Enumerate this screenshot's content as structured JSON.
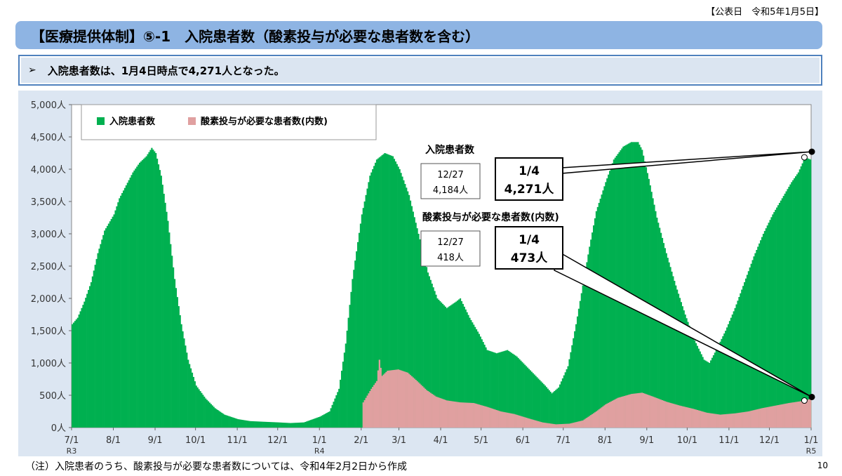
{
  "header": {
    "published": "【公表日　令和5年1月5日】",
    "title": "【医療提供体制】⑤-1　入院患者数（酸素投与が必要な患者数を含む）",
    "summary_bullet": "➢",
    "summary": "入院患者数は、1月4日時点で4,271人となった。"
  },
  "footer": {
    "note": "（注）入院患者のうち、酸素投与が必要な患者数については、令和4年2月2日から作成",
    "page_number": "10"
  },
  "colors": {
    "inpatients": "#00b050",
    "oxygen": "#e0a0a0",
    "plot_bg": "#ffffff",
    "frame_bg": "#dce6f2",
    "title_bar": "#8eb4e3"
  },
  "chart_data": {
    "type": "area",
    "x_unit": "date",
    "ylim": [
      0,
      5000
    ],
    "yticks": [
      "0人",
      "500人",
      "1,000人",
      "1,500人",
      "2,000人",
      "2,500人",
      "3,000人",
      "3,500人",
      "4,000人",
      "4,500人",
      "5,000人"
    ],
    "xticks": [
      "7/1",
      "8/1",
      "9/1",
      "10/1",
      "11/1",
      "12/1",
      "1/1",
      "2/1",
      "3/1",
      "4/1",
      "5/1",
      "6/1",
      "7/1",
      "8/1",
      "9/1",
      "10/1",
      "11/1",
      "12/1",
      "1/1"
    ],
    "xticks_sub": {
      "0": "R3",
      "6": "R4",
      "18": "R5"
    },
    "grid": false,
    "legend": {
      "placement": "top-left",
      "entries": [
        "入院患者数",
        "酸素投与が必要な患者数(内数)"
      ]
    },
    "series": [
      {
        "name": "入院患者数",
        "points": [
          [
            "2021-07-01",
            1600
          ],
          [
            "2021-07-05",
            1700
          ],
          [
            "2021-07-10",
            1950
          ],
          [
            "2021-07-15",
            2250
          ],
          [
            "2021-07-20",
            2700
          ],
          [
            "2021-07-25",
            3050
          ],
          [
            "2021-08-01",
            3300
          ],
          [
            "2021-08-05",
            3550
          ],
          [
            "2021-08-10",
            3750
          ],
          [
            "2021-08-15",
            3950
          ],
          [
            "2021-08-20",
            4100
          ],
          [
            "2021-08-25",
            4200
          ],
          [
            "2021-08-29",
            4330
          ],
          [
            "2021-09-01",
            4250
          ],
          [
            "2021-09-05",
            3900
          ],
          [
            "2021-09-10",
            3200
          ],
          [
            "2021-09-15",
            2300
          ],
          [
            "2021-09-20",
            1600
          ],
          [
            "2021-09-25",
            1050
          ],
          [
            "2021-10-01",
            650
          ],
          [
            "2021-10-08",
            450
          ],
          [
            "2021-10-15",
            300
          ],
          [
            "2021-10-22",
            200
          ],
          [
            "2021-11-01",
            130
          ],
          [
            "2021-11-10",
            100
          ],
          [
            "2021-11-20",
            90
          ],
          [
            "2021-12-01",
            80
          ],
          [
            "2021-12-10",
            70
          ],
          [
            "2021-12-20",
            80
          ],
          [
            "2022-01-01",
            170
          ],
          [
            "2022-01-08",
            250
          ],
          [
            "2022-01-15",
            600
          ],
          [
            "2022-01-20",
            1300
          ],
          [
            "2022-01-25",
            2300
          ],
          [
            "2022-02-01",
            3300
          ],
          [
            "2022-02-07",
            3900
          ],
          [
            "2022-02-12",
            4150
          ],
          [
            "2022-02-18",
            4250
          ],
          [
            "2022-02-24",
            4200
          ],
          [
            "2022-03-01",
            4000
          ],
          [
            "2022-03-08",
            3600
          ],
          [
            "2022-03-15",
            3000
          ],
          [
            "2022-03-22",
            2400
          ],
          [
            "2022-03-29",
            2000
          ],
          [
            "2022-04-05",
            1850
          ],
          [
            "2022-04-12",
            1950
          ],
          [
            "2022-04-15",
            2000
          ],
          [
            "2022-04-22",
            1700
          ],
          [
            "2022-04-29",
            1450
          ],
          [
            "2022-05-05",
            1200
          ],
          [
            "2022-05-12",
            1150
          ],
          [
            "2022-05-20",
            1200
          ],
          [
            "2022-05-27",
            1100
          ],
          [
            "2022-06-03",
            950
          ],
          [
            "2022-06-10",
            800
          ],
          [
            "2022-06-17",
            650
          ],
          [
            "2022-06-22",
            530
          ],
          [
            "2022-06-27",
            620
          ],
          [
            "2022-07-04",
            950
          ],
          [
            "2022-07-10",
            1600
          ],
          [
            "2022-07-15",
            2200
          ],
          [
            "2022-07-20",
            2800
          ],
          [
            "2022-07-25",
            3350
          ],
          [
            "2022-08-01",
            3800
          ],
          [
            "2022-08-07",
            4150
          ],
          [
            "2022-08-14",
            4350
          ],
          [
            "2022-08-20",
            4420
          ],
          [
            "2022-08-25",
            4420
          ],
          [
            "2022-08-28",
            4300
          ],
          [
            "2022-09-02",
            3850
          ],
          [
            "2022-09-08",
            3250
          ],
          [
            "2022-09-15",
            2700
          ],
          [
            "2022-09-22",
            2200
          ],
          [
            "2022-09-29",
            1750
          ],
          [
            "2022-10-06",
            1350
          ],
          [
            "2022-10-13",
            1050
          ],
          [
            "2022-10-17",
            1000
          ],
          [
            "2022-10-22",
            1200
          ],
          [
            "2022-10-29",
            1500
          ],
          [
            "2022-11-05",
            1850
          ],
          [
            "2022-11-12",
            2250
          ],
          [
            "2022-11-19",
            2650
          ],
          [
            "2022-11-26",
            3000
          ],
          [
            "2022-12-03",
            3300
          ],
          [
            "2022-12-10",
            3550
          ],
          [
            "2022-12-17",
            3800
          ],
          [
            "2022-12-22",
            3950
          ],
          [
            "2022-12-27",
            4184
          ],
          [
            "2022-12-31",
            4150
          ],
          [
            "2023-01-04",
            4271
          ]
        ]
      },
      {
        "name": "酸素投与が必要な患者数(内数)",
        "points": [
          [
            "2022-02-02",
            390
          ],
          [
            "2022-02-08",
            600
          ],
          [
            "2022-02-12",
            720
          ],
          [
            "2022-02-14",
            1050
          ],
          [
            "2022-02-16",
            800
          ],
          [
            "2022-02-20",
            880
          ],
          [
            "2022-02-28",
            900
          ],
          [
            "2022-03-07",
            850
          ],
          [
            "2022-03-14",
            720
          ],
          [
            "2022-03-21",
            580
          ],
          [
            "2022-03-28",
            480
          ],
          [
            "2022-04-05",
            420
          ],
          [
            "2022-04-15",
            390
          ],
          [
            "2022-04-25",
            380
          ],
          [
            "2022-05-05",
            320
          ],
          [
            "2022-05-15",
            250
          ],
          [
            "2022-05-25",
            210
          ],
          [
            "2022-06-05",
            140
          ],
          [
            "2022-06-15",
            80
          ],
          [
            "2022-06-25",
            50
          ],
          [
            "2022-07-05",
            60
          ],
          [
            "2022-07-15",
            110
          ],
          [
            "2022-07-25",
            250
          ],
          [
            "2022-08-01",
            360
          ],
          [
            "2022-08-10",
            460
          ],
          [
            "2022-08-20",
            520
          ],
          [
            "2022-08-28",
            540
          ],
          [
            "2022-09-05",
            480
          ],
          [
            "2022-09-15",
            400
          ],
          [
            "2022-09-25",
            340
          ],
          [
            "2022-10-05",
            290
          ],
          [
            "2022-10-15",
            230
          ],
          [
            "2022-10-25",
            200
          ],
          [
            "2022-11-05",
            220
          ],
          [
            "2022-11-15",
            250
          ],
          [
            "2022-11-25",
            300
          ],
          [
            "2022-12-05",
            340
          ],
          [
            "2022-12-15",
            380
          ],
          [
            "2022-12-27",
            418
          ],
          [
            "2023-01-04",
            473
          ]
        ]
      }
    ],
    "annotations": {
      "inpatients_title": "入院患者数",
      "inpatients_prev_date": "12/27",
      "inpatients_prev_value": "4,184人",
      "inpatients_latest_date": "1/4",
      "inpatients_latest_value": "4,271人",
      "oxygen_title": "酸素投与が必要な患者数(内数)",
      "oxygen_prev_date": "12/27",
      "oxygen_prev_value": "418人",
      "oxygen_latest_date": "1/4",
      "oxygen_latest_value": "473人"
    }
  }
}
